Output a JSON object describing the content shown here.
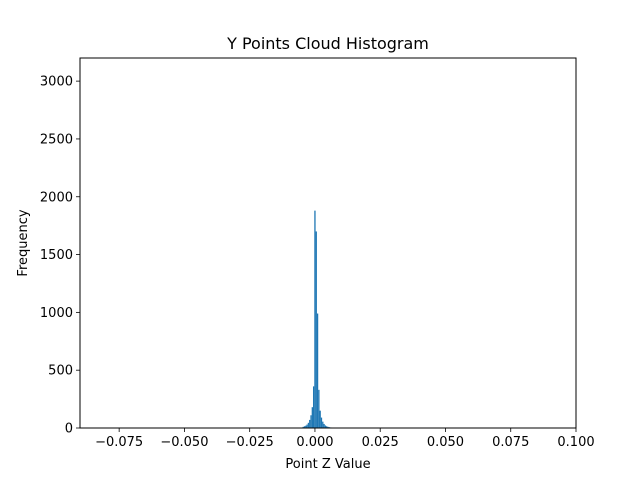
{
  "chart_data": {
    "type": "bar",
    "title": "Y Points Cloud Histogram",
    "xlabel": "Point Z Value",
    "ylabel": "Frequency",
    "xlim": [
      -0.09,
      0.1
    ],
    "ylim": [
      0,
      3200
    ],
    "xticks": [
      -0.075,
      -0.05,
      -0.025,
      0.0,
      0.025,
      0.05,
      0.075,
      0.1
    ],
    "xtick_labels": [
      "−0.075",
      "−0.050",
      "−0.025",
      "0.000",
      "0.025",
      "0.050",
      "0.075",
      "0.100"
    ],
    "yticks": [
      0,
      500,
      1000,
      1500,
      2000,
      2500,
      3000
    ],
    "ytick_labels": [
      "0",
      "500",
      "1000",
      "1500",
      "2000",
      "2500",
      "3000"
    ],
    "grid": false,
    "bar_color": "#1f77b4",
    "bin_width": 0.0005,
    "bins": [
      {
        "x": -0.0045,
        "value": 10
      },
      {
        "x": -0.004,
        "value": 15
      },
      {
        "x": -0.0035,
        "value": 20
      },
      {
        "x": -0.003,
        "value": 30
      },
      {
        "x": -0.0025,
        "value": 45
      },
      {
        "x": -0.002,
        "value": 70
      },
      {
        "x": -0.0015,
        "value": 110
      },
      {
        "x": -0.001,
        "value": 180
      },
      {
        "x": -0.0005,
        "value": 360
      },
      {
        "x": 0.0,
        "value": 1880
      },
      {
        "x": 0.0005,
        "value": 1700
      },
      {
        "x": 0.001,
        "value": 990
      },
      {
        "x": 0.0015,
        "value": 330
      },
      {
        "x": 0.002,
        "value": 150
      },
      {
        "x": 0.0025,
        "value": 90
      },
      {
        "x": 0.003,
        "value": 55
      },
      {
        "x": 0.0035,
        "value": 35
      },
      {
        "x": 0.004,
        "value": 22
      },
      {
        "x": 0.0045,
        "value": 15
      },
      {
        "x": 0.005,
        "value": 10
      },
      {
        "x": 0.0055,
        "value": 7
      },
      {
        "x": 0.006,
        "value": 5
      },
      {
        "x": 0.0065,
        "value": 3
      }
    ]
  }
}
